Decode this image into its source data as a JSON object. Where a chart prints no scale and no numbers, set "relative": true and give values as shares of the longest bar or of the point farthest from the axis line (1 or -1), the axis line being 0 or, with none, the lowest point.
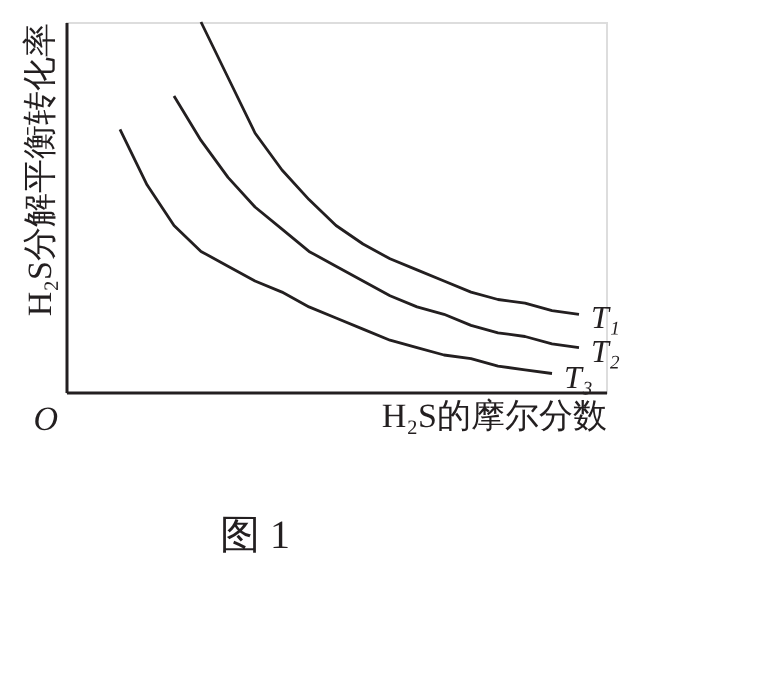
{
  "chart_data": {
    "type": "line",
    "relative": true,
    "xlabel": "H₂S的摩尔分数",
    "ylabel": "H₂S分解平衡转化率",
    "line_style": "solid",
    "annotations": [
      "O",
      "图 1"
    ],
    "categories": [
      null,
      null,
      null,
      null,
      null,
      null,
      null,
      null,
      null,
      null,
      null,
      null,
      null,
      null,
      null,
      null,
      null,
      null
    ],
    "series": [
      {
        "name": "T₁",
        "color": "#231f20",
        "values": [
          null,
          null,
          null,
          1.0,
          0.85,
          0.7,
          0.6,
          0.52,
          0.45,
          0.4,
          0.36,
          0.33,
          0.3,
          0.27,
          0.25,
          0.24,
          0.22,
          0.21
        ]
      },
      {
        "name": "T₂",
        "color": "#231f20",
        "values": [
          null,
          null,
          0.8,
          0.68,
          0.58,
          0.5,
          0.44,
          0.38,
          0.34,
          0.3,
          0.26,
          0.23,
          0.21,
          0.18,
          0.16,
          0.15,
          0.13,
          0.12
        ]
      },
      {
        "name": "T₃",
        "color": "#231f20",
        "values": [
          0.71,
          0.56,
          0.45,
          0.38,
          0.34,
          0.3,
          0.27,
          0.23,
          0.2,
          0.17,
          0.14,
          0.12,
          0.1,
          0.09,
          0.07,
          0.06,
          0.05,
          null
        ]
      }
    ]
  }
}
